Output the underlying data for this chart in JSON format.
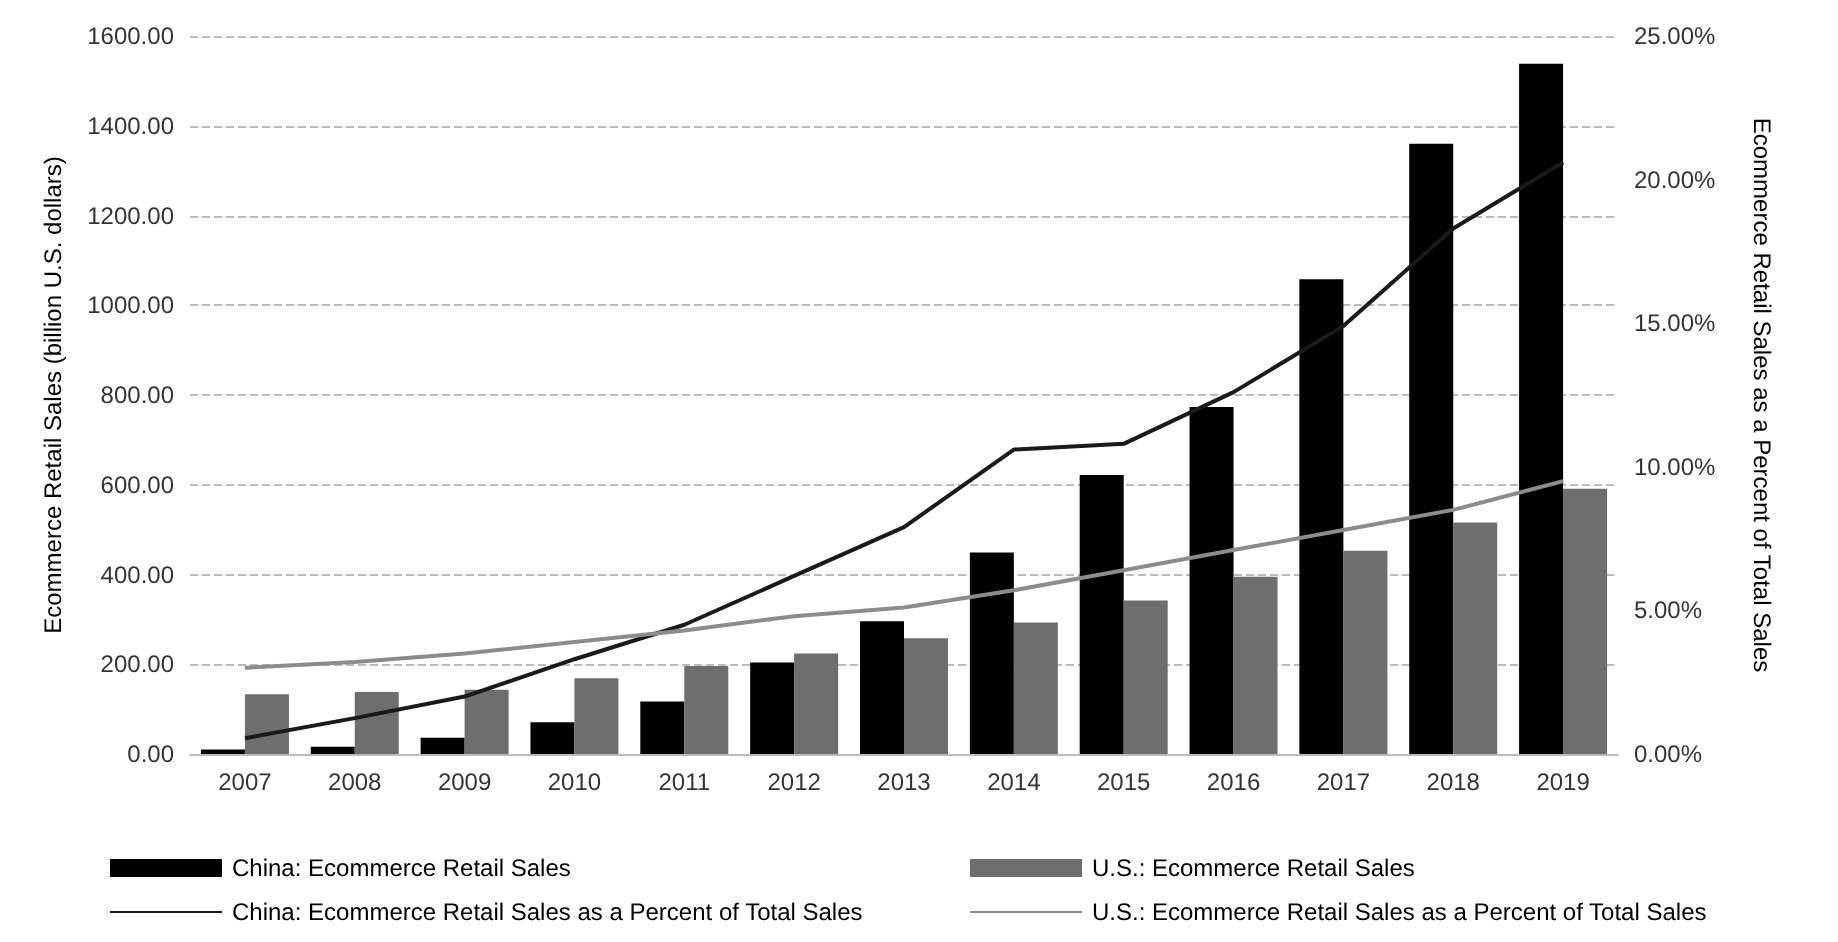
{
  "chart_data": {
    "type": "bar",
    "ylabel": "Ecommerce Retail Sales (billion U.S. dollars)",
    "y2label": "Ecommerce Retail Sales as a Percent of Total Sales",
    "categories": [
      "2007",
      "2008",
      "2009",
      "2010",
      "2011",
      "2012",
      "2013",
      "2014",
      "2015",
      "2016",
      "2017",
      "2018",
      "2019"
    ],
    "series": [
      {
        "name": "China: Ecommerce Retail Sales",
        "color": "#000000",
        "values": [
          10,
          16,
          36,
          71,
          117,
          204,
          296,
          449,
          622,
          773,
          1058,
          1360,
          1538
        ]
      },
      {
        "name": "U.S.: Ecommerce Retail Sales",
        "color": "#6e6e6e",
        "values": [
          133,
          138,
          143,
          169,
          196,
          224,
          258,
          293,
          342,
          395,
          453,
          516,
          591
        ]
      },
      {
        "name": "China: Ecommerce Retail Sales as a Percent of Total Sales",
        "type": "line",
        "axis": "y2",
        "color": "#1a1a1a",
        "values": [
          0.55,
          1.25,
          2.0,
          3.3,
          4.5,
          6.2,
          7.9,
          10.6,
          10.8,
          12.6,
          14.9,
          18.3,
          20.6
        ]
      },
      {
        "name": "U.S.: Ecommerce Retail Sales as a Percent of Total Sales",
        "type": "line",
        "axis": "y2",
        "color": "#8c8c8c",
        "values": [
          3.0,
          3.2,
          3.5,
          3.9,
          4.3,
          4.8,
          5.1,
          5.7,
          6.4,
          7.1,
          7.8,
          8.5,
          9.5
        ]
      }
    ],
    "ylim": [
      0,
      1600
    ],
    "yticks": [
      {
        "value": 0,
        "label": "0.00"
      },
      {
        "value": 200,
        "label": "200.00"
      },
      {
        "value": 400,
        "label": "400.00"
      },
      {
        "value": 600,
        "label": "600.00"
      },
      {
        "value": 800,
        "label": "800.00"
      },
      {
        "value": 1000,
        "label": "1000.00"
      },
      {
        "value": 1200,
        "label": "1200.00"
      },
      {
        "value": 1400,
        "label": "1400.00"
      },
      {
        "value": 1600,
        "label": "1600.00"
      }
    ],
    "y2lim": [
      0,
      25
    ],
    "y2ticks": [
      {
        "value": 0,
        "label": "0.00%"
      },
      {
        "value": 5,
        "label": "5.00%"
      },
      {
        "value": 10,
        "label": "10.00%"
      },
      {
        "value": 15,
        "label": "15.00%"
      },
      {
        "value": 20,
        "label": "20.00%"
      },
      {
        "value": 25,
        "label": "25.00%"
      }
    ],
    "grid": "y",
    "legend": "bottom",
    "marker": "none",
    "line_style": "solid"
  }
}
